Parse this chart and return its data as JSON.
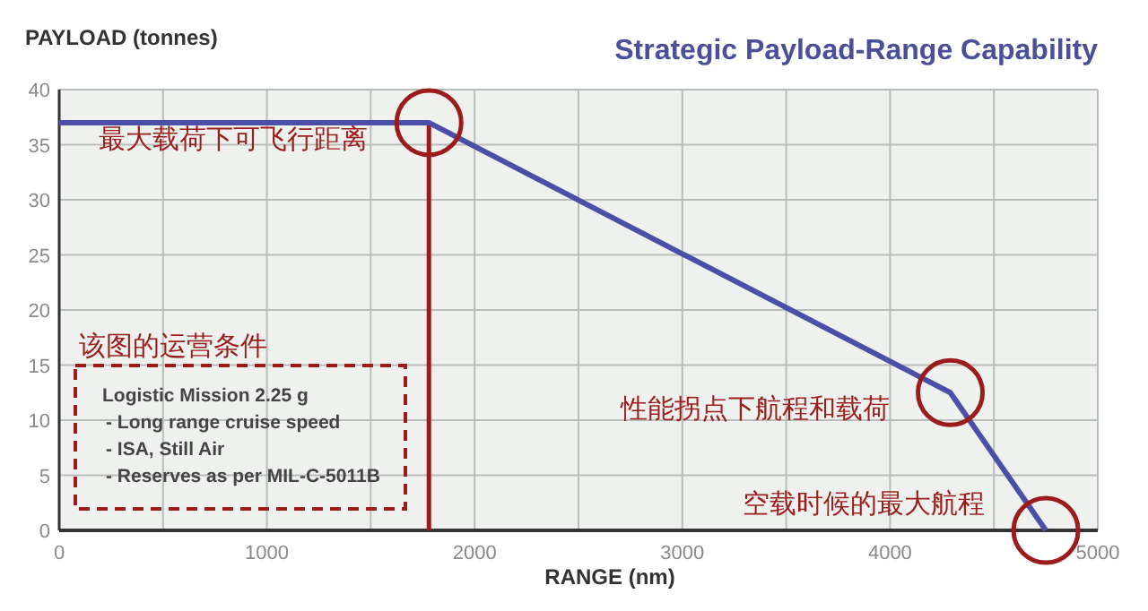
{
  "chart_data": {
    "type": "line",
    "title": "Strategic Payload-Range Capability",
    "xlabel": "RANGE (nm)",
    "ylabel": "PAYLOAD (tonnes)",
    "x": [
      0,
      1780,
      4290,
      4750
    ],
    "series": [
      {
        "color": "#4b4fa8",
        "values": [
          37,
          37,
          12.5,
          0
        ]
      }
    ],
    "xlim": [
      0,
      5000
    ],
    "ylim": [
      0,
      40
    ],
    "xticks": [
      0,
      {
        "value": 500,
        "label": null
      },
      1000,
      {
        "value": 1500,
        "label": null
      },
      2000,
      {
        "value": 2500,
        "label": null
      },
      3000,
      {
        "value": 3500,
        "label": null
      },
      4000,
      {
        "value": 4500,
        "label": null
      },
      5000
    ],
    "yticks": [
      0,
      5,
      10,
      15,
      20,
      25,
      30,
      35,
      40
    ],
    "grid": true,
    "line_style": "solid",
    "ref_lines": [
      {
        "axis": "x",
        "value": 1780,
        "color": "#9b1c1c"
      }
    ],
    "annotations": [
      {
        "text": "最大载荷下可飞行距离",
        "x": 1780,
        "y": 37
      },
      {
        "text": "性能拐点下航程和载荷",
        "x": 4290,
        "y": 12.5
      },
      {
        "text": "空载时候的最大航程",
        "x": 4750,
        "y": 0
      },
      "该图的运营条件",
      "Logistic Mission  2.25 g",
      "- Long range cruise speed",
      "- ISA, Still Air",
      "- Reserves as per MIL-C-5011B"
    ]
  }
}
